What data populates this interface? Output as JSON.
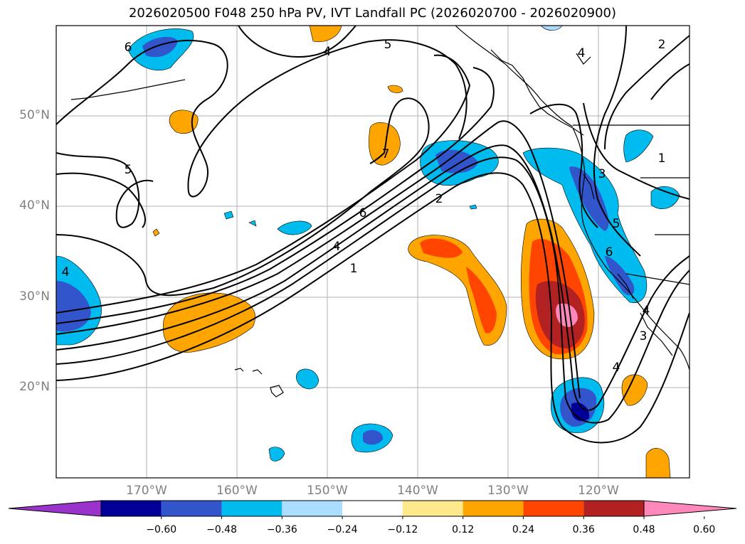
{
  "title": "2026020500 F048 250 hPa PV, IVT Landfall PC (2026020700 - 2026020900)",
  "map": {
    "lat_labels": [
      "50°N",
      "40°N",
      "30°N",
      "20°N"
    ],
    "lon_labels": [
      "170°W",
      "160°W",
      "150°W",
      "140°W",
      "130°W",
      "120°W"
    ],
    "extent": {
      "lon_min": -180,
      "lon_max": -110,
      "lat_min": 10,
      "lat_max": 60
    },
    "contour_labels": [
      "6",
      "5",
      "5",
      "4",
      "4",
      "4",
      "7",
      "2",
      "6",
      "4",
      "1",
      "2",
      "1",
      "3",
      "5",
      "6",
      "4",
      "3",
      "4"
    ]
  },
  "colorbar": {
    "ticks": [
      "−0.60",
      "−0.48",
      "−0.36",
      "−0.24",
      "−0.12",
      "0.12",
      "0.24",
      "0.36",
      "0.48",
      "0.60"
    ],
    "colors": [
      "#9933cc",
      "#000099",
      "#3355cc",
      "#00bbee",
      "#aaddff",
      "#ffffff",
      "#ffe98c",
      "#ffa500",
      "#ff4500",
      "#b22222",
      "#ff88bb"
    ]
  }
}
